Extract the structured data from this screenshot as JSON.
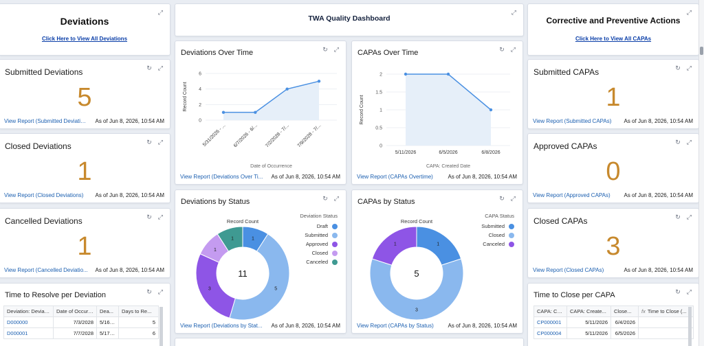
{
  "icons": {
    "expand": "expand-icon",
    "refresh": "refresh-icon"
  },
  "colors": {
    "number": "#c7892d",
    "link": "#1b5fb0",
    "line": "#4a90e2",
    "area": "#e6eff9"
  },
  "deviations_header": {
    "title": "Deviations",
    "link": "Click Here to View All Deviations"
  },
  "dashboard_header": {
    "title": "TWA Quality Dashboard"
  },
  "capa_header": {
    "title": "Corrective and Preventive Actions",
    "link": "Click Here to View All CAPAs"
  },
  "metrics": {
    "submitted_deviations": {
      "title": "Submitted Deviations",
      "value": "5",
      "link": "View Report (Submitted Deviatio...",
      "asof": "As of Jun 8, 2026, 10:54 AM"
    },
    "closed_deviations": {
      "title": "Closed Deviations",
      "value": "1",
      "link": "View Report (Closed Deviations)",
      "asof": "As of Jun 8, 2026, 10:54 AM"
    },
    "cancelled_deviations": {
      "title": "Cancelled Deviations",
      "value": "1",
      "link": "View Report (Cancelled Deviatio...",
      "asof": "As of Jun 8, 2026, 10:54 AM"
    },
    "submitted_capas": {
      "title": "Submitted CAPAs",
      "value": "1",
      "link": "View Report (Submitted CAPAs)",
      "asof": "As of Jun 8, 2026, 10:54 AM"
    },
    "approved_capas": {
      "title": "Approved CAPAs",
      "value": "0",
      "link": "View Report (Approved CAPAs)",
      "asof": "As of Jun 8, 2026, 10:54 AM"
    },
    "closed_capas": {
      "title": "Closed CAPAs",
      "value": "3",
      "link": "View Report (Closed CAPAs)",
      "asof": "As of Jun 8, 2026, 10:54 AM"
    }
  },
  "dev_over_time": {
    "title": "Deviations Over Time",
    "link": "View Report (Deviations Over Ti...",
    "asof": "As of Jun 8, 2026, 10:54 AM",
    "chart_data": {
      "type": "area",
      "categories": [
        "5/31/2026 - ...",
        "6/7/2026 - 6/...",
        "7/2/2028 - 7/...",
        "7/9/2028 - 7/..."
      ],
      "values": [
        1,
        1,
        4,
        5
      ],
      "ylim": [
        0,
        6
      ],
      "yticks": [
        "0",
        "2",
        "4",
        "6"
      ],
      "xlabel": "Date of Occurrence",
      "ylabel": "Record Count"
    }
  },
  "capa_over_time": {
    "title": "CAPAs Over Time",
    "link": "View Report (CAPAs Overtime)",
    "asof": "As of Jun 8, 2026, 10:54 AM",
    "chart_data": {
      "type": "area",
      "categories": [
        "5/11/2026",
        "6/5/2026",
        "6/8/2026"
      ],
      "values": [
        2,
        2,
        1
      ],
      "ylim": [
        0,
        2
      ],
      "yticks": [
        "0",
        "0.5",
        "1",
        "1.5",
        "2"
      ],
      "xlabel": "CAPA: Created Date",
      "ylabel": "Record Count"
    }
  },
  "dev_by_status": {
    "title": "Deviations by Status",
    "link": "View Report (Deviations by Stat...",
    "asof": "As of Jun 8, 2026, 10:54 AM",
    "chart_data": {
      "type": "pie",
      "donut_title": "Record Count",
      "total": "11",
      "legend_title": "Deviation Status",
      "slices": [
        {
          "name": "Draft",
          "value": 1,
          "color": "#4a90e2"
        },
        {
          "name": "Submitted",
          "value": 5,
          "color": "#8ab8ee"
        },
        {
          "name": "Approved",
          "value": 3,
          "color": "#8e55e6"
        },
        {
          "name": "Closed",
          "value": 1,
          "color": "#c49bf0"
        },
        {
          "name": "Canceled",
          "value": 1,
          "color": "#3f9a92"
        }
      ]
    }
  },
  "capa_by_status": {
    "title": "CAPAs by Status",
    "link": "View Report (CAPAs by Status)",
    "asof": "As of Jun 8, 2026, 10:54 AM",
    "chart_data": {
      "type": "pie",
      "donut_title": "Record Count",
      "total": "5",
      "legend_title": "CAPA Status",
      "slices": [
        {
          "name": "Submitted",
          "value": 1,
          "color": "#4a90e2"
        },
        {
          "name": "Closed",
          "value": 3,
          "color": "#8ab8ee"
        },
        {
          "name": "Canceled",
          "value": 1,
          "color": "#8e55e6"
        }
      ]
    }
  },
  "dev_resolve_table": {
    "title": "Time to Resolve per Deviation",
    "columns": [
      "Deviation: Deviati...",
      "Date of Occurr...",
      "Dea...",
      "Days to Re..."
    ],
    "rows": [
      [
        "D000000",
        "7/3/2028",
        "5/16/20",
        "5"
      ],
      [
        "D000001",
        "7/7/2028",
        "5/17/20",
        "6"
      ]
    ]
  },
  "capa_close_table": {
    "title": "Time to Close per CAPA",
    "columns": [
      "CAPA: CA...",
      "CAPA: Create...",
      "Close...",
      "Time to Close (..."
    ],
    "fx": "fx",
    "rows": [
      [
        "CP000001",
        "5/11/2026",
        "6/4/2026",
        ""
      ],
      [
        "CP000004",
        "5/11/2026",
        "6/5/2026",
        ""
      ]
    ]
  }
}
